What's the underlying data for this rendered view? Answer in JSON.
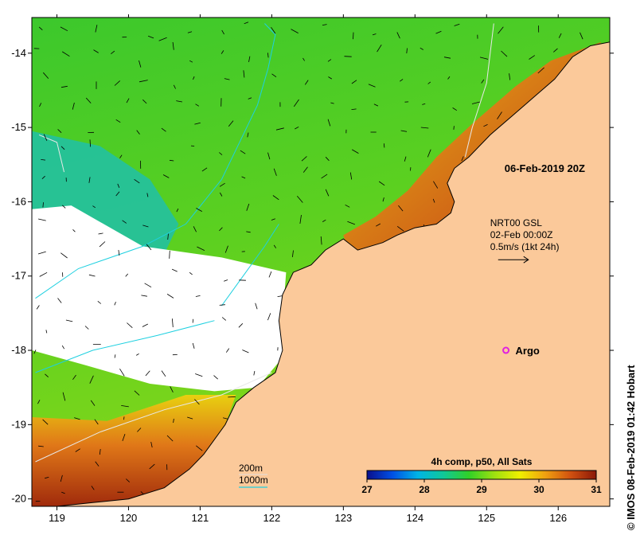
{
  "colors": {
    "land": "#fbc99a",
    "no_data": "#ffffff",
    "frame": "#000000",
    "isobath_200": "#e8e8e8",
    "isobath_1000": "#1ed0e0",
    "argo": "#e020e0"
  },
  "map": {
    "lon_range": [
      118.65,
      126.72
    ],
    "lat_range": [
      -20.1,
      -13.52
    ],
    "x_ticks": [
      {
        "value": 119,
        "label": "119"
      },
      {
        "value": 120,
        "label": "120"
      },
      {
        "value": 121,
        "label": "121"
      },
      {
        "value": 122,
        "label": "122"
      },
      {
        "value": 123,
        "label": "123"
      },
      {
        "value": 124,
        "label": "124"
      },
      {
        "value": 125,
        "label": "125"
      },
      {
        "value": 126,
        "label": "126"
      }
    ],
    "y_ticks": [
      {
        "value": -14,
        "label": "-14"
      },
      {
        "value": -15,
        "label": "-15"
      },
      {
        "value": -16,
        "label": "-16"
      },
      {
        "value": -17,
        "label": "-17"
      },
      {
        "value": -18,
        "label": "-18"
      },
      {
        "value": -19,
        "label": "-19"
      },
      {
        "value": -20,
        "label": "-20"
      }
    ],
    "coastline": [
      [
        126.72,
        -13.52
      ],
      [
        126.72,
        -13.85
      ],
      [
        126.45,
        -13.9
      ],
      [
        126.2,
        -14.05
      ],
      [
        125.95,
        -14.35
      ],
      [
        125.65,
        -14.6
      ],
      [
        125.35,
        -14.85
      ],
      [
        125.05,
        -15.1
      ],
      [
        124.75,
        -15.4
      ],
      [
        124.55,
        -15.55
      ],
      [
        124.45,
        -15.75
      ],
      [
        124.55,
        -16.0
      ],
      [
        124.5,
        -16.15
      ],
      [
        124.3,
        -16.3
      ],
      [
        124.0,
        -16.35
      ],
      [
        123.75,
        -16.45
      ],
      [
        123.55,
        -16.55
      ],
      [
        123.2,
        -16.65
      ],
      [
        123.0,
        -16.5
      ],
      [
        122.75,
        -16.65
      ],
      [
        122.55,
        -16.85
      ],
      [
        122.3,
        -16.95
      ],
      [
        122.15,
        -17.25
      ],
      [
        122.1,
        -17.6
      ],
      [
        122.15,
        -18.0
      ],
      [
        122.05,
        -18.3
      ],
      [
        121.75,
        -18.5
      ],
      [
        121.5,
        -18.7
      ],
      [
        121.35,
        -19.0
      ],
      [
        121.05,
        -19.4
      ],
      [
        120.85,
        -19.6
      ],
      [
        120.5,
        -19.85
      ],
      [
        120.0,
        -20.0
      ],
      [
        119.5,
        -20.05
      ],
      [
        119.0,
        -20.1
      ],
      [
        126.72,
        -20.1
      ]
    ],
    "coral_band": [
      [
        125.9,
        -14.1
      ],
      [
        126.6,
        -13.85
      ],
      [
        126.2,
        -14.4
      ],
      [
        125.6,
        -14.7
      ],
      [
        125.1,
        -15.15
      ],
      [
        124.9,
        -15.5
      ],
      [
        124.6,
        -16.1
      ],
      [
        124.3,
        -16.45
      ],
      [
        123.6,
        -16.65
      ],
      [
        123.1,
        -16.75
      ],
      [
        123.0,
        -16.45
      ],
      [
        123.45,
        -16.2
      ],
      [
        123.9,
        -15.85
      ],
      [
        124.3,
        -15.4
      ],
      [
        124.8,
        -14.95
      ],
      [
        125.4,
        -14.45
      ]
    ],
    "teal_zone": [
      [
        118.65,
        -15.05
      ],
      [
        119.6,
        -15.25
      ],
      [
        120.3,
        -15.7
      ],
      [
        120.7,
        -16.3
      ],
      [
        120.4,
        -16.9
      ],
      [
        119.7,
        -17.3
      ],
      [
        118.65,
        -17.4
      ]
    ],
    "white_zone": [
      [
        118.65,
        -16.1
      ],
      [
        119.2,
        -16.05
      ],
      [
        120.2,
        -16.6
      ],
      [
        121.3,
        -16.75
      ],
      [
        122.2,
        -16.95
      ],
      [
        122.15,
        -17.6
      ],
      [
        122.15,
        -18.1
      ],
      [
        121.8,
        -18.5
      ],
      [
        121.2,
        -18.55
      ],
      [
        120.3,
        -18.45
      ],
      [
        119.4,
        -18.2
      ],
      [
        118.65,
        -18.0
      ]
    ],
    "south_warm": [
      [
        118.65,
        -18.9
      ],
      [
        119.7,
        -18.95
      ],
      [
        120.8,
        -18.6
      ],
      [
        121.5,
        -18.6
      ],
      [
        121.35,
        -19.0
      ],
      [
        121.05,
        -19.4
      ],
      [
        120.85,
        -19.6
      ],
      [
        120.5,
        -19.85
      ],
      [
        120.0,
        -20.0
      ],
      [
        119.0,
        -20.1
      ],
      [
        118.65,
        -20.1
      ]
    ],
    "isobath_1000_paths": [
      [
        [
          118.7,
          -17.3
        ],
        [
          119.3,
          -16.9
        ],
        [
          120.2,
          -16.6
        ],
        [
          120.8,
          -16.3
        ],
        [
          121.3,
          -15.7
        ],
        [
          121.55,
          -15.2
        ],
        [
          121.8,
          -14.7
        ],
        [
          121.95,
          -14.2
        ],
        [
          122.05,
          -13.75
        ],
        [
          121.9,
          -13.6
        ]
      ],
      [
        [
          121.3,
          -17.4
        ],
        [
          121.6,
          -17.0
        ],
        [
          121.9,
          -16.6
        ],
        [
          122.1,
          -16.3
        ]
      ],
      [
        [
          118.7,
          -18.3
        ],
        [
          119.5,
          -18.0
        ],
        [
          120.4,
          -17.8
        ],
        [
          121.2,
          -17.6
        ]
      ]
    ],
    "isobath_200_paths": [
      [
        [
          118.7,
          -19.5
        ],
        [
          119.6,
          -19.1
        ],
        [
          120.5,
          -18.8
        ],
        [
          121.3,
          -18.6
        ],
        [
          122.0,
          -18.3
        ]
      ],
      [
        [
          118.75,
          -15.1
        ],
        [
          119.0,
          -15.2
        ],
        [
          119.1,
          -15.6
        ]
      ],
      [
        [
          125.1,
          -13.6
        ],
        [
          125.0,
          -14.4
        ],
        [
          124.8,
          -15.0
        ],
        [
          124.7,
          -15.4
        ]
      ]
    ]
  },
  "annotations": {
    "timestamp": "06-Feb-2019 20Z",
    "timestamp_pos": [
      125.25,
      -15.6
    ],
    "current_lines": [
      "NRT00 GSL",
      "02-Feb 00:00Z",
      "0.5m/s (1kt 24h)"
    ],
    "current_pos": [
      125.05,
      -16.33
    ],
    "argo_label": "Argo",
    "argo_pos": [
      125.27,
      -18.0
    ],
    "isobath_200_label": "200m",
    "isobath_1000_label": "1000m"
  },
  "colorbar": {
    "title": "4h comp, p50, All Sats",
    "min": 27,
    "max": 31,
    "ticks": [
      "27",
      "28",
      "29",
      "30",
      "31"
    ],
    "stops": [
      "#0a0f8c",
      "#0050e6",
      "#00b4e6",
      "#10c898",
      "#30d028",
      "#9ee010",
      "#f0f000",
      "#f0a010",
      "#d05010",
      "#8a1808"
    ]
  },
  "credit": "© IMOS 08-Feb-2019 01:42 Hobart"
}
